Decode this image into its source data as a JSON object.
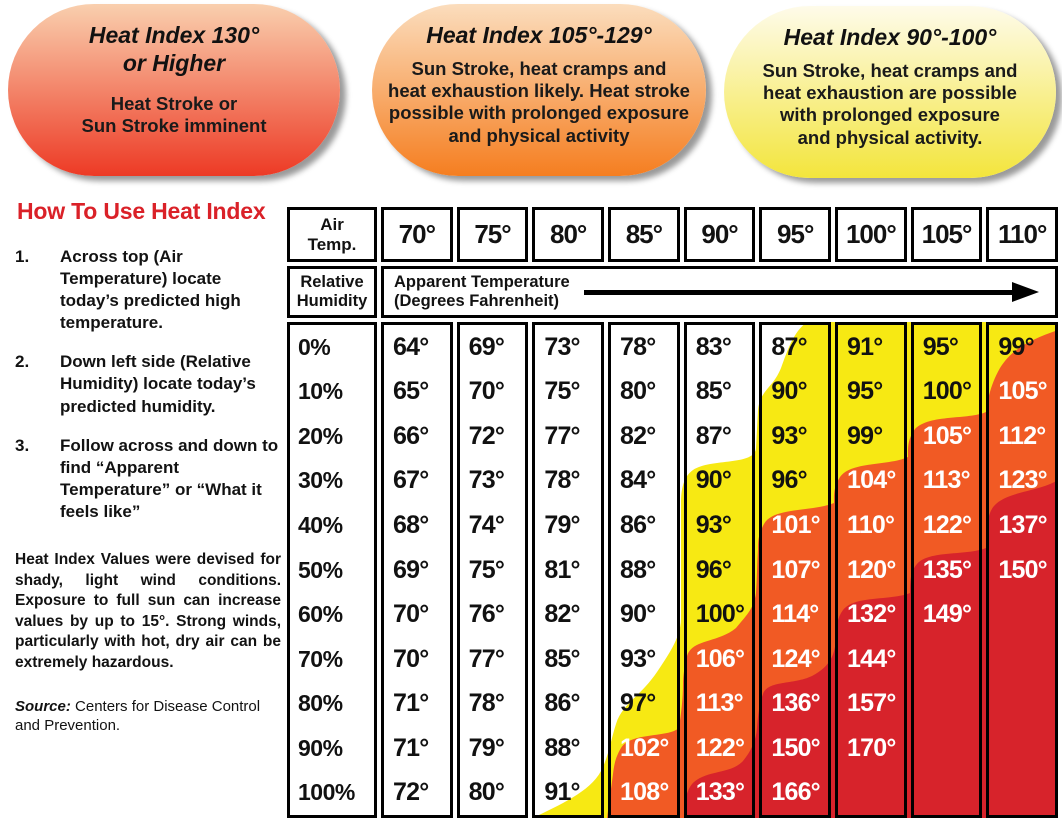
{
  "legend": [
    {
      "range": "130° or Higher",
      "title": "Heat Index 130°\nor Higher",
      "body": "Heat Stroke or\nSun Stroke imminent",
      "gradient_top": "#F9CFAE",
      "gradient_bottom": "#ED3A25"
    },
    {
      "range": "105°-129°",
      "title": "Heat Index 105°-129°",
      "body": "Sun Stroke, heat cramps and\nheat exhaustion likely. Heat stroke\npossible with prolonged exposure\nand physical activity",
      "gradient_top": "#FBDDBD",
      "gradient_bottom": "#F57E20"
    },
    {
      "range": "90°-100°",
      "title": "Heat Index 90°-100°",
      "body": "Sun Stroke, heat cramps and\nheat exhaustion are possible\nwith prolonged exposure\nand physical activity.",
      "gradient_top": "#FEFBEA",
      "gradient_bottom": "#F3E53C"
    }
  ],
  "howto": {
    "heading": "How To Use Heat Index",
    "heading_color": "#DA2128",
    "steps": [
      {
        "num": "1.",
        "text": "Across top (Air Temperature) locate today’s predicted high temperature."
      },
      {
        "num": "2.",
        "text": "Down left side (Relative Humidity) locate today’s predicted humidity."
      },
      {
        "num": "3.",
        "text": "Follow across and down to find “Apparent Temperature” or “What it feels like”"
      }
    ],
    "note": "Heat Index Values were devised for shady, light wind conditions. Exposure to full sun can increase values by up to 15°. Strong winds, particularly with hot, dry air can be extremely hazardous.",
    "source_label": "Source:",
    "source_text": " Centers for Disease Control and Prevention."
  },
  "table": {
    "col_headers": [
      "Air\nTemp.",
      "70°",
      "75°",
      "80°",
      "85°",
      "90°",
      "95°",
      "100°",
      "105°",
      "110°"
    ],
    "row_header": "Relative\nHumidity",
    "span_header": "Apparent Temperature\n(Degrees Fahrenheit)"
  },
  "colors": {
    "zone_yellow": "#F7E913",
    "zone_orange": "#F15A24",
    "zone_red": "#D7232B",
    "white_text_threshold": 101
  },
  "chart_data": {
    "type": "heatmap",
    "title": "Heat Index (Apparent Temperature)",
    "x_label": "Air Temp.",
    "y_label": "Relative Humidity",
    "cell_label": "Apparent Temperature (Degrees Fahrenheit)",
    "x_categories": [
      "70°",
      "75°",
      "80°",
      "85°",
      "90°",
      "95°",
      "100°",
      "105°",
      "110°"
    ],
    "y_categories": [
      "0%",
      "10%",
      "20%",
      "30%",
      "40%",
      "50%",
      "60%",
      "70%",
      "80%",
      "90%",
      "100%"
    ],
    "values": [
      [
        64,
        69,
        73,
        78,
        83,
        87,
        91,
        95,
        99
      ],
      [
        65,
        70,
        75,
        80,
        85,
        90,
        95,
        100,
        105
      ],
      [
        66,
        72,
        77,
        82,
        87,
        93,
        99,
        105,
        112
      ],
      [
        67,
        73,
        78,
        84,
        90,
        96,
        104,
        113,
        123
      ],
      [
        68,
        74,
        79,
        86,
        93,
        101,
        110,
        122,
        137
      ],
      [
        69,
        75,
        81,
        88,
        96,
        107,
        120,
        135,
        150
      ],
      [
        70,
        76,
        82,
        90,
        100,
        114,
        132,
        149,
        null
      ],
      [
        70,
        77,
        85,
        93,
        106,
        124,
        144,
        null,
        null
      ],
      [
        71,
        78,
        86,
        97,
        113,
        136,
        157,
        null,
        null
      ],
      [
        71,
        79,
        88,
        102,
        122,
        150,
        170,
        null,
        null
      ],
      [
        72,
        80,
        91,
        108,
        133,
        166,
        null,
        null,
        null
      ]
    ],
    "zones": [
      {
        "range": "90°-100°",
        "color": "#F7E913",
        "meaning": "Sun Stroke, heat cramps and heat exhaustion are possible with prolonged exposure and physical activity."
      },
      {
        "range": "105°-129°",
        "color": "#F15A24",
        "meaning": "Sun Stroke, heat cramps and heat exhaustion likely. Heat stroke possible with prolonged exposure and physical activity"
      },
      {
        "range": "130° or Higher",
        "color": "#D7232B",
        "meaning": "Heat Stroke or Sun Stroke imminent"
      }
    ],
    "grid": true,
    "legend_position": "top"
  }
}
